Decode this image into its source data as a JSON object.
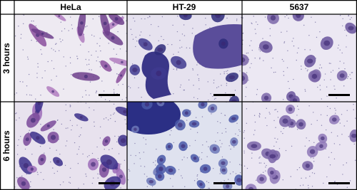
{
  "columns": [
    "HeLa",
    "HT-29",
    "5637"
  ],
  "rows": [
    "3 hours",
    "6 hours"
  ]
}
